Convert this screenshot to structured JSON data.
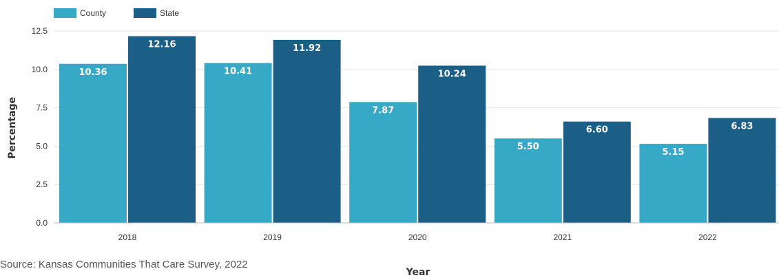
{
  "chart_data": {
    "type": "bar",
    "categories": [
      "2018",
      "2019",
      "2020",
      "2021",
      "2022"
    ],
    "series": [
      {
        "name": "County",
        "values": [
          10.36,
          10.41,
          7.87,
          5.5,
          5.15
        ],
        "labels": [
          "10.36",
          "10.41",
          "7.87",
          "5.50",
          "5.15"
        ],
        "color": "#35a9c5"
      },
      {
        "name": "State",
        "values": [
          12.16,
          11.92,
          10.24,
          6.6,
          6.83
        ],
        "labels": [
          "12.16",
          "11.92",
          "10.24",
          "6.60",
          "6.83"
        ],
        "color": "#1b5e86"
      }
    ],
    "xlabel": "Year",
    "ylabel": "Percentage",
    "ylim": [
      0,
      12.5
    ],
    "yticks": [
      "0.0",
      "2.5",
      "5.0",
      "7.5",
      "10.0",
      "12.5"
    ],
    "grid": true,
    "legend_position": "top-left"
  },
  "source_note": "Source: Kansas Communities That Care Survey, 2022"
}
